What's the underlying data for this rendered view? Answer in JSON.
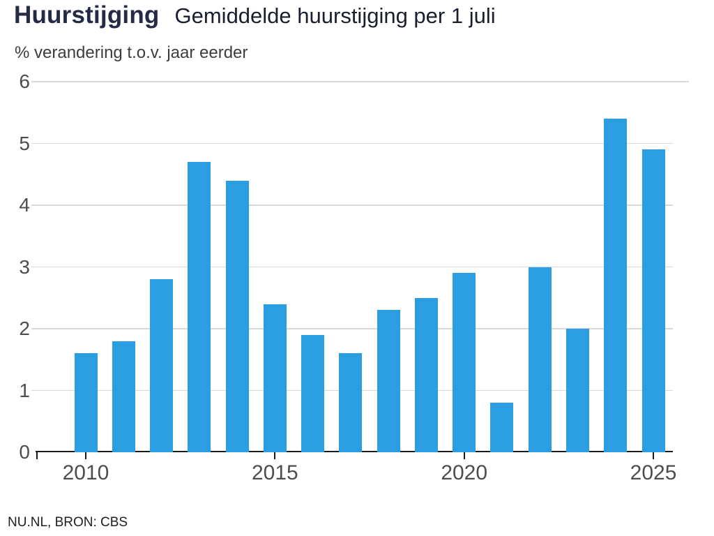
{
  "header": {
    "title": "Huurstijging",
    "subtitle": "Gemiddelde huurstijging per 1 juli"
  },
  "chart_data": {
    "type": "bar",
    "title": "Huurstijging — Gemiddelde huurstijging per 1 juli",
    "ylabel": "% verandering t.o.v. jaar eerder",
    "categories": [
      "2010",
      "2011",
      "2012",
      "2013",
      "2014",
      "2015",
      "2016",
      "2017",
      "2018",
      "2019",
      "2020",
      "2021",
      "2022",
      "2023",
      "2024",
      "2025"
    ],
    "values": [
      1.6,
      1.8,
      2.8,
      4.7,
      4.4,
      2.4,
      1.9,
      1.6,
      2.3,
      2.5,
      2.9,
      0.8,
      3.0,
      2.0,
      5.4,
      4.9
    ],
    "ylim": [
      0,
      6
    ],
    "yticks": [
      0,
      1,
      2,
      3,
      4,
      5,
      6
    ],
    "xtick_labels": [
      "2010",
      "2015",
      "2020",
      "2025"
    ],
    "grid": true,
    "legend": "none",
    "bar_color": "#2a9ee0"
  },
  "footer": {
    "source": "NU.NL, BRON: CBS"
  },
  "colors": {
    "bar": "#2a9ee0",
    "title": "#252a47",
    "subtitle": "#1b1e2e",
    "axis_text": "#4d4d4d",
    "gridline": "#d9d9d9",
    "axis_line": "#1a1a1a",
    "background": "#ffffff"
  }
}
